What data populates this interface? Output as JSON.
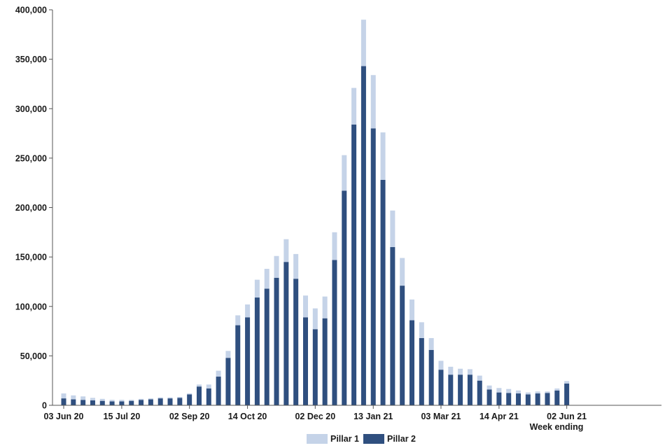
{
  "chart_data": {
    "type": "bar",
    "stacked": true,
    "xlabel": "Week ending",
    "ylim": [
      0,
      400000
    ],
    "yticks": [
      "0",
      "50,000",
      "100,000",
      "150,000",
      "200,000",
      "250,000",
      "300,000",
      "350,000",
      "400,000"
    ],
    "xtick_labels": [
      {
        "index": 0,
        "label": "03 Jun 20"
      },
      {
        "index": 6,
        "label": "15 Jul 20"
      },
      {
        "index": 13,
        "label": "02 Sep 20"
      },
      {
        "index": 19,
        "label": "14 Oct 20"
      },
      {
        "index": 26,
        "label": "02 Dec 20"
      },
      {
        "index": 32,
        "label": "13 Jan 21"
      },
      {
        "index": 39,
        "label": "03 Mar 21"
      },
      {
        "index": 45,
        "label": "14 Apr 21"
      },
      {
        "index": 52,
        "label": "02 Jun 21"
      }
    ],
    "legend": {
      "position": "bottom"
    },
    "series": [
      {
        "name": "Pillar 2",
        "color": "#2f4f7f",
        "values": [
          7000,
          6000,
          5500,
          5000,
          4500,
          4000,
          4000,
          4500,
          5500,
          6000,
          7000,
          7000,
          7500,
          11000,
          19000,
          17000,
          29000,
          48000,
          81000,
          89000,
          109000,
          118000,
          129000,
          145000,
          128000,
          89000,
          77000,
          88000,
          147000,
          217000,
          284000,
          343000,
          280000,
          228000,
          160000,
          121000,
          86000,
          68000,
          56000,
          36000,
          31000,
          31000,
          31000,
          25000,
          16000,
          13000,
          12500,
          12000,
          11000,
          12000,
          12500,
          15000,
          22000
        ]
      },
      {
        "name": "Pillar 1",
        "color": "#c5d3e8",
        "values": [
          5000,
          4000,
          3500,
          2500,
          2000,
          1500,
          1500,
          1000,
          1000,
          1000,
          1000,
          1000,
          1000,
          1000,
          2000,
          4000,
          6000,
          7000,
          10000,
          13000,
          18000,
          20000,
          22000,
          23000,
          25000,
          22000,
          21000,
          22000,
          28000,
          36000,
          37000,
          47000,
          54000,
          48000,
          37000,
          28000,
          21000,
          16000,
          12000,
          9000,
          8000,
          6000,
          5500,
          5000,
          4000,
          4500,
          4000,
          3000,
          2000,
          2000,
          1500,
          2000,
          2500
        ]
      }
    ]
  }
}
